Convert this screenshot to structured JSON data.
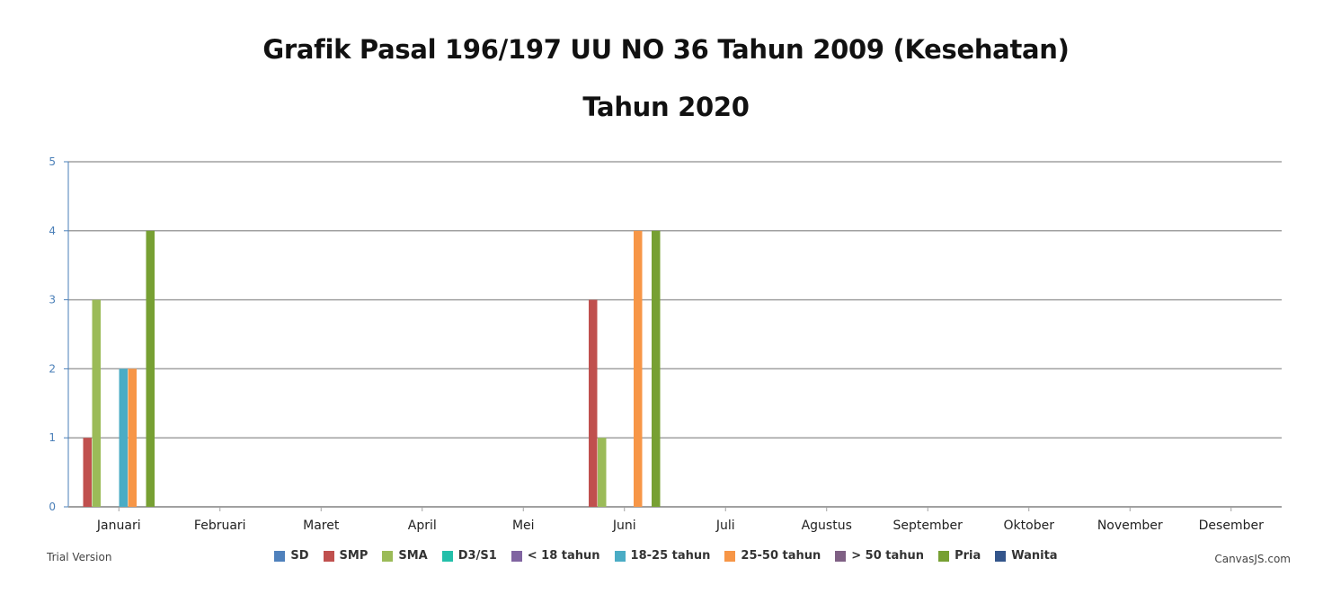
{
  "chart_data": {
    "type": "bar",
    "title": "Grafik Pasal 196/197 UU NO 36 Tahun 2009 (Kesehatan)",
    "subtitle": "Tahun 2020",
    "categories": [
      "Januari",
      "Februari",
      "Maret",
      "April",
      "Mei",
      "Juni",
      "Juli",
      "Agustus",
      "September",
      "Oktober",
      "November",
      "Desember"
    ],
    "ylim": [
      0,
      5
    ],
    "yticks": [
      0,
      1,
      2,
      3,
      4,
      5
    ],
    "grid": true,
    "legend_position": "bottom",
    "series": [
      {
        "name": "SD",
        "color": "#4f81bc",
        "values": [
          0,
          0,
          0,
          0,
          0,
          0,
          0,
          0,
          0,
          0,
          0,
          0
        ]
      },
      {
        "name": "SMP",
        "color": "#c0504e",
        "values": [
          1,
          0,
          0,
          0,
          0,
          3,
          0,
          0,
          0,
          0,
          0,
          0
        ]
      },
      {
        "name": "SMA",
        "color": "#9bbb58",
        "values": [
          3,
          0,
          0,
          0,
          0,
          1,
          0,
          0,
          0,
          0,
          0,
          0
        ]
      },
      {
        "name": "D3/S1",
        "color": "#23bfaa",
        "values": [
          0,
          0,
          0,
          0,
          0,
          0,
          0,
          0,
          0,
          0,
          0,
          0
        ]
      },
      {
        "name": "< 18 tahun",
        "color": "#8064a1",
        "values": [
          0,
          0,
          0,
          0,
          0,
          0,
          0,
          0,
          0,
          0,
          0,
          0
        ]
      },
      {
        "name": "18-25 tahun",
        "color": "#4aacc5",
        "values": [
          2,
          0,
          0,
          0,
          0,
          0,
          0,
          0,
          0,
          0,
          0,
          0
        ]
      },
      {
        "name": "25-50 tahun",
        "color": "#f79647",
        "values": [
          2,
          0,
          0,
          0,
          0,
          4,
          0,
          0,
          0,
          0,
          0,
          0
        ]
      },
      {
        "name": "> 50 tahun",
        "color": "#7f6084",
        "values": [
          0,
          0,
          0,
          0,
          0,
          0,
          0,
          0,
          0,
          0,
          0,
          0
        ]
      },
      {
        "name": "Pria",
        "color": "#77a033",
        "values": [
          4,
          0,
          0,
          0,
          0,
          4,
          0,
          0,
          0,
          0,
          0,
          0
        ]
      },
      {
        "name": "Wanita",
        "color": "#33558b",
        "values": [
          0,
          0,
          0,
          0,
          0,
          0,
          0,
          0,
          0,
          0,
          0,
          0
        ]
      }
    ]
  },
  "footer": {
    "trial": "Trial Version",
    "credit": "CanvasJS.com"
  },
  "colors": {
    "axis": "#4a7fb8",
    "grid": "#a0a0a0",
    "tick_label_y": "#4a7fb8",
    "tick_label_x": "#222222"
  }
}
